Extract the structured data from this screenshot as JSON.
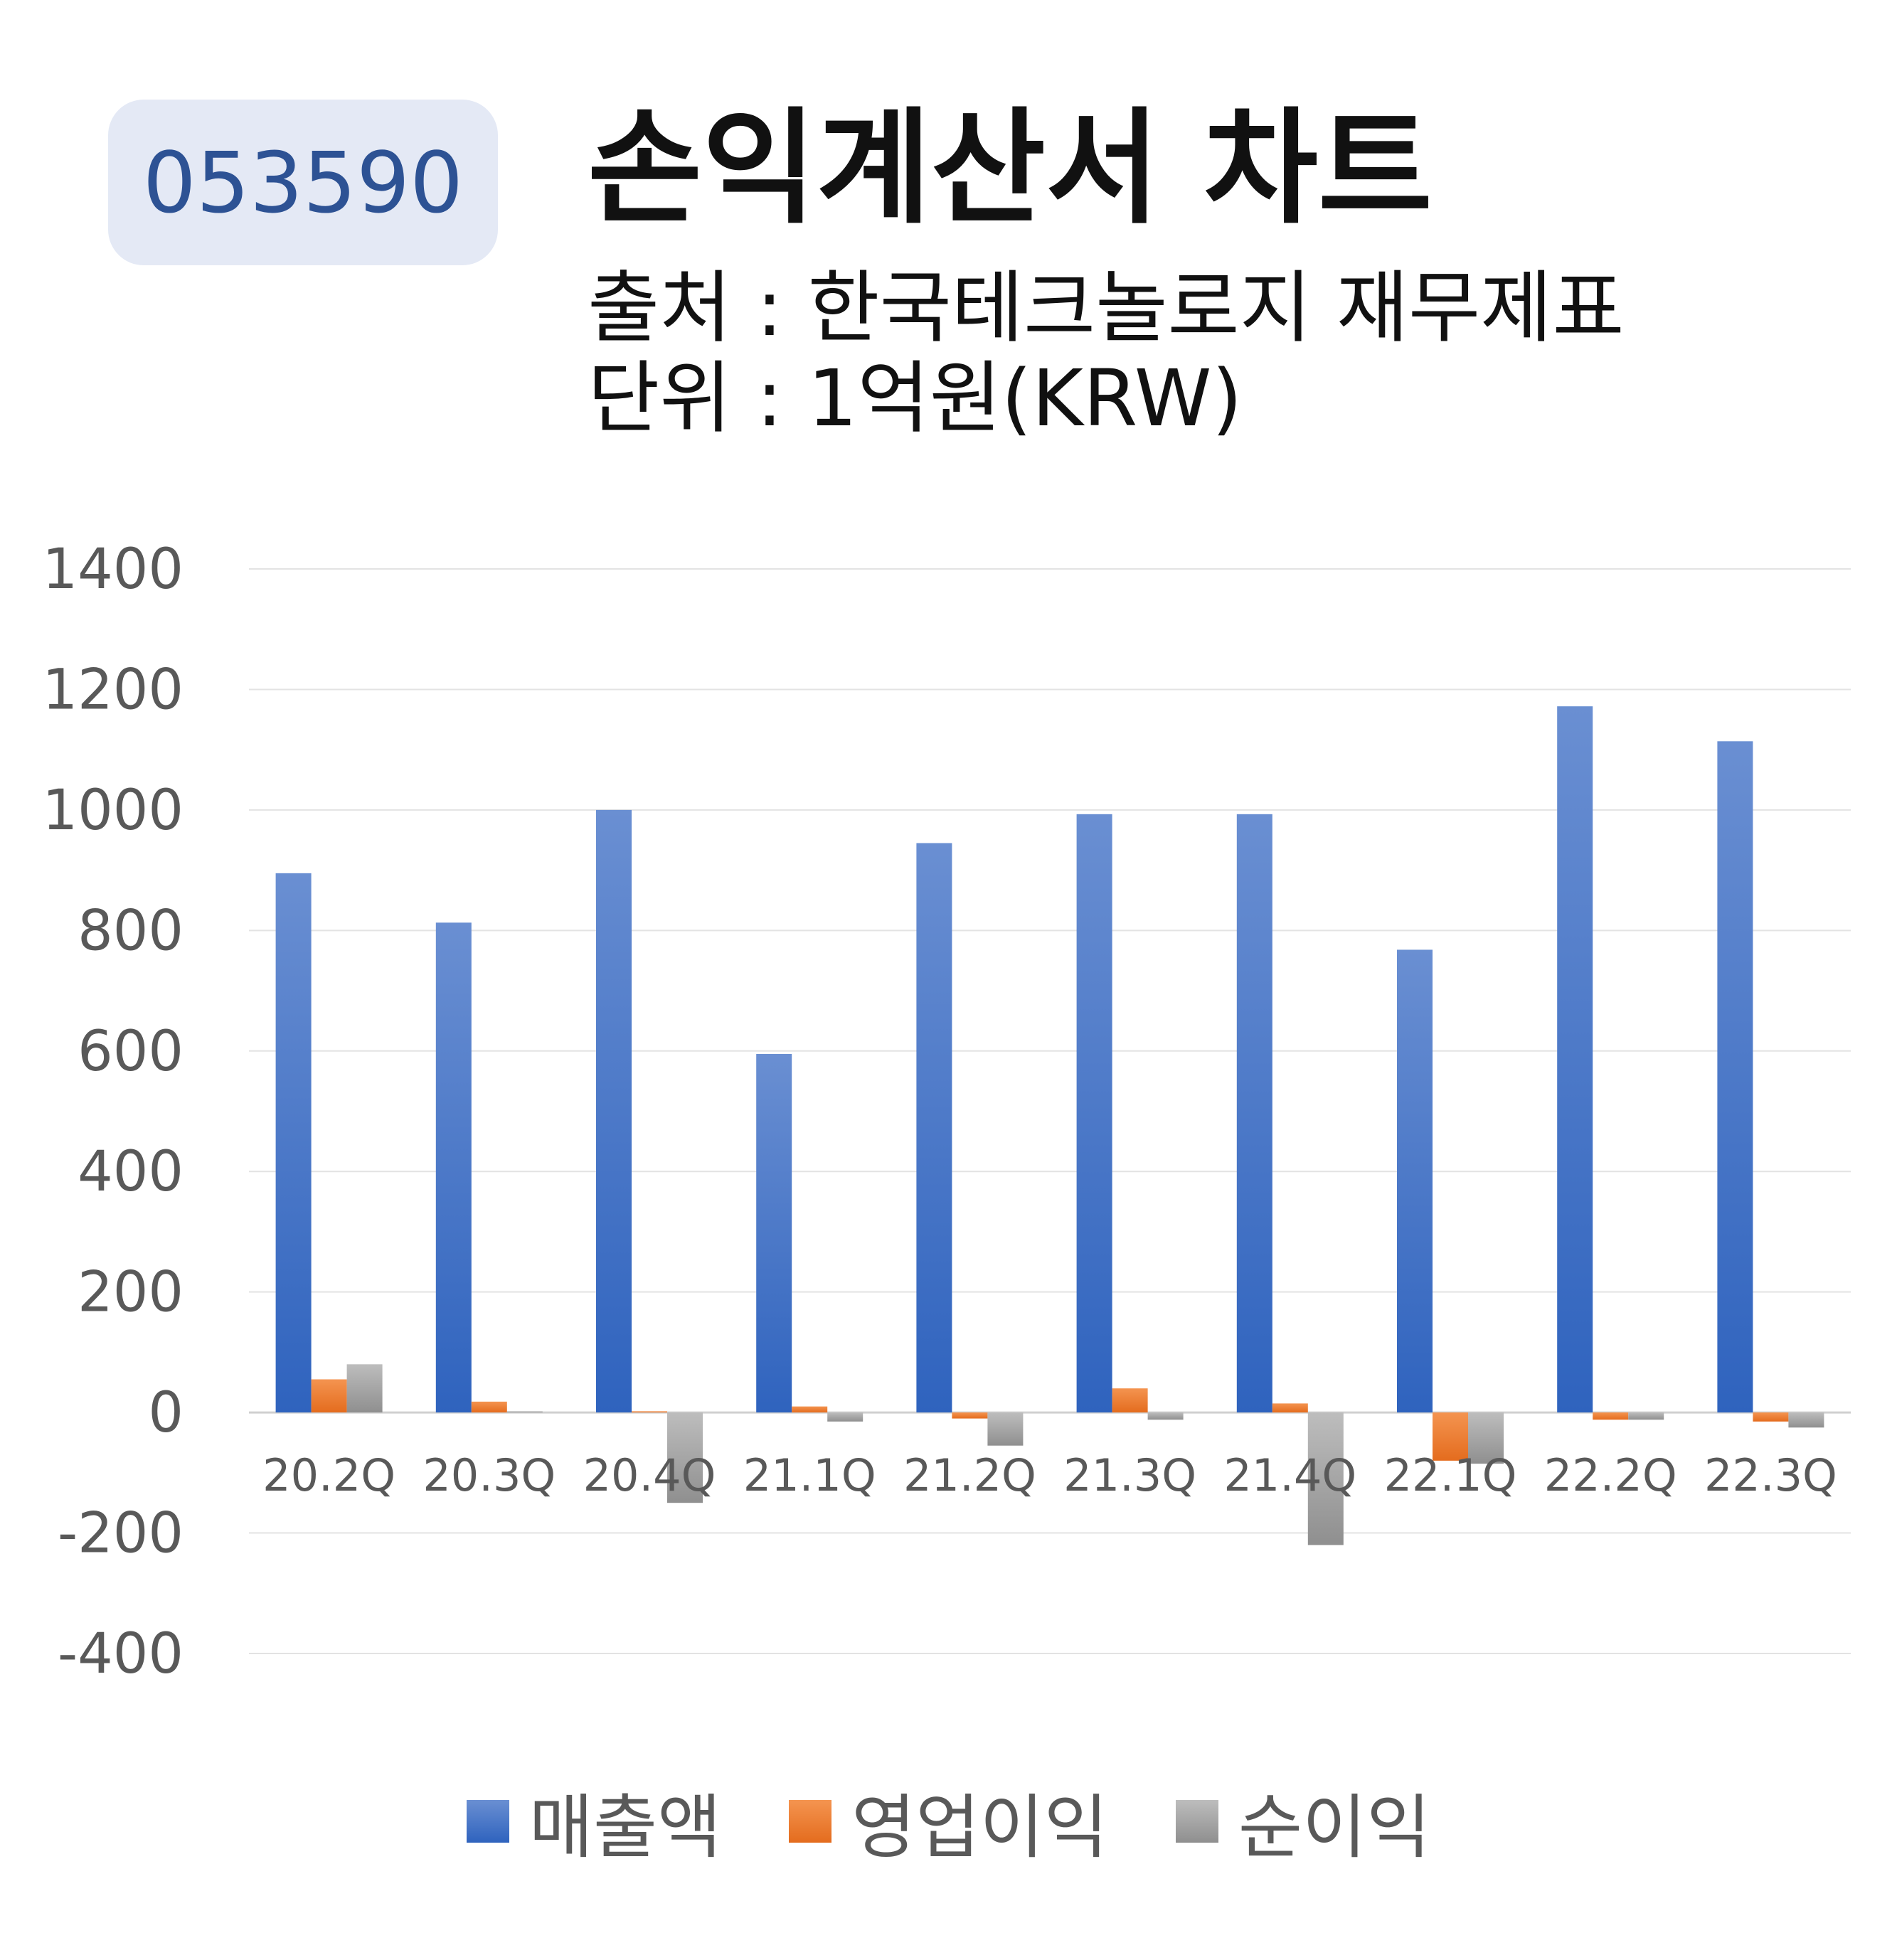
{
  "badge": {
    "code": "053590"
  },
  "header": {
    "title": "손익계산서 차트",
    "source": "출처 : 한국테크놀로지 재무제표",
    "unit": "단위 : 1억원(KRW)"
  },
  "colors": {
    "sales": "#4472c4",
    "operating": "#ed7d31",
    "net": "#a5a5a5"
  },
  "chart_data": {
    "type": "bar",
    "categories": [
      "20.2Q",
      "20.3Q",
      "20.4Q",
      "21.1Q",
      "21.2Q",
      "21.3Q",
      "21.4Q",
      "22.1Q",
      "22.2Q",
      "22.3Q"
    ],
    "series": [
      {
        "name": "매출액",
        "values": [
          895,
          813,
          1000,
          595,
          945,
          993,
          993,
          768,
          1172,
          1114
        ]
      },
      {
        "name": "영업이익",
        "values": [
          55,
          18,
          2,
          10,
          -10,
          40,
          15,
          -80,
          -12,
          -15
        ]
      },
      {
        "name": "순이익",
        "values": [
          80,
          2,
          -150,
          -15,
          -55,
          -12,
          -220,
          -85,
          -12,
          -25
        ]
      }
    ],
    "yticks": [
      "1400",
      "1200",
      "1000",
      "800",
      "600",
      "400",
      "200",
      "0",
      "-200",
      "-400"
    ],
    "ylim": [
      -400,
      1400
    ],
    "grid": true,
    "legend_position": "bottom"
  }
}
